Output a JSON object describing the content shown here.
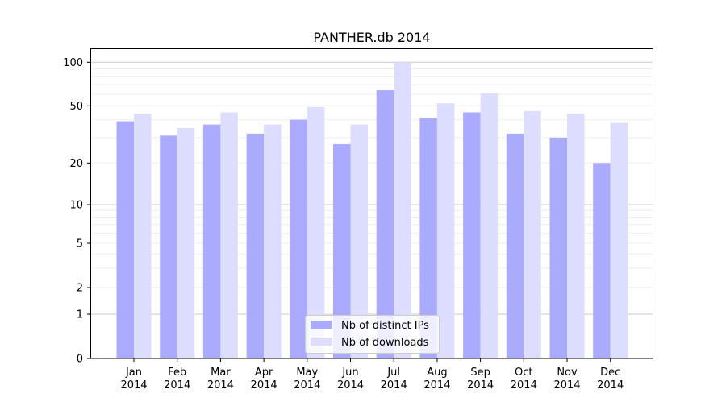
{
  "chart_data": {
    "type": "bar",
    "title": "PANTHER.db 2014",
    "xlabel": "",
    "ylabel": "",
    "yscale": "symlog",
    "ylim": [
      0,
      115
    ],
    "yticks": [
      0,
      1,
      2,
      5,
      10,
      20,
      50,
      100
    ],
    "ytick_labels": [
      "0",
      "1",
      "2",
      "5",
      "10",
      "20",
      "50",
      "100"
    ],
    "grid": true,
    "legend_position": "bottom-center",
    "categories": [
      "Jan\n2014",
      "Feb\n2014",
      "Mar\n2014",
      "Apr\n2014",
      "May\n2014",
      "Jun\n2014",
      "Jul\n2014",
      "Aug\n2014",
      "Sep\n2014",
      "Oct\n2014",
      "Nov\n2014",
      "Dec\n2014"
    ],
    "series": [
      {
        "name": "Nb of distinct IPs",
        "color": "#aaaaff",
        "values": [
          39,
          31,
          37,
          32,
          40,
          27,
          64,
          41,
          45,
          32,
          30,
          20
        ]
      },
      {
        "name": "Nb of downloads",
        "color": "#ddddff",
        "values": [
          44,
          35,
          45,
          37,
          49,
          37,
          100,
          52,
          61,
          46,
          44,
          38
        ]
      }
    ]
  }
}
